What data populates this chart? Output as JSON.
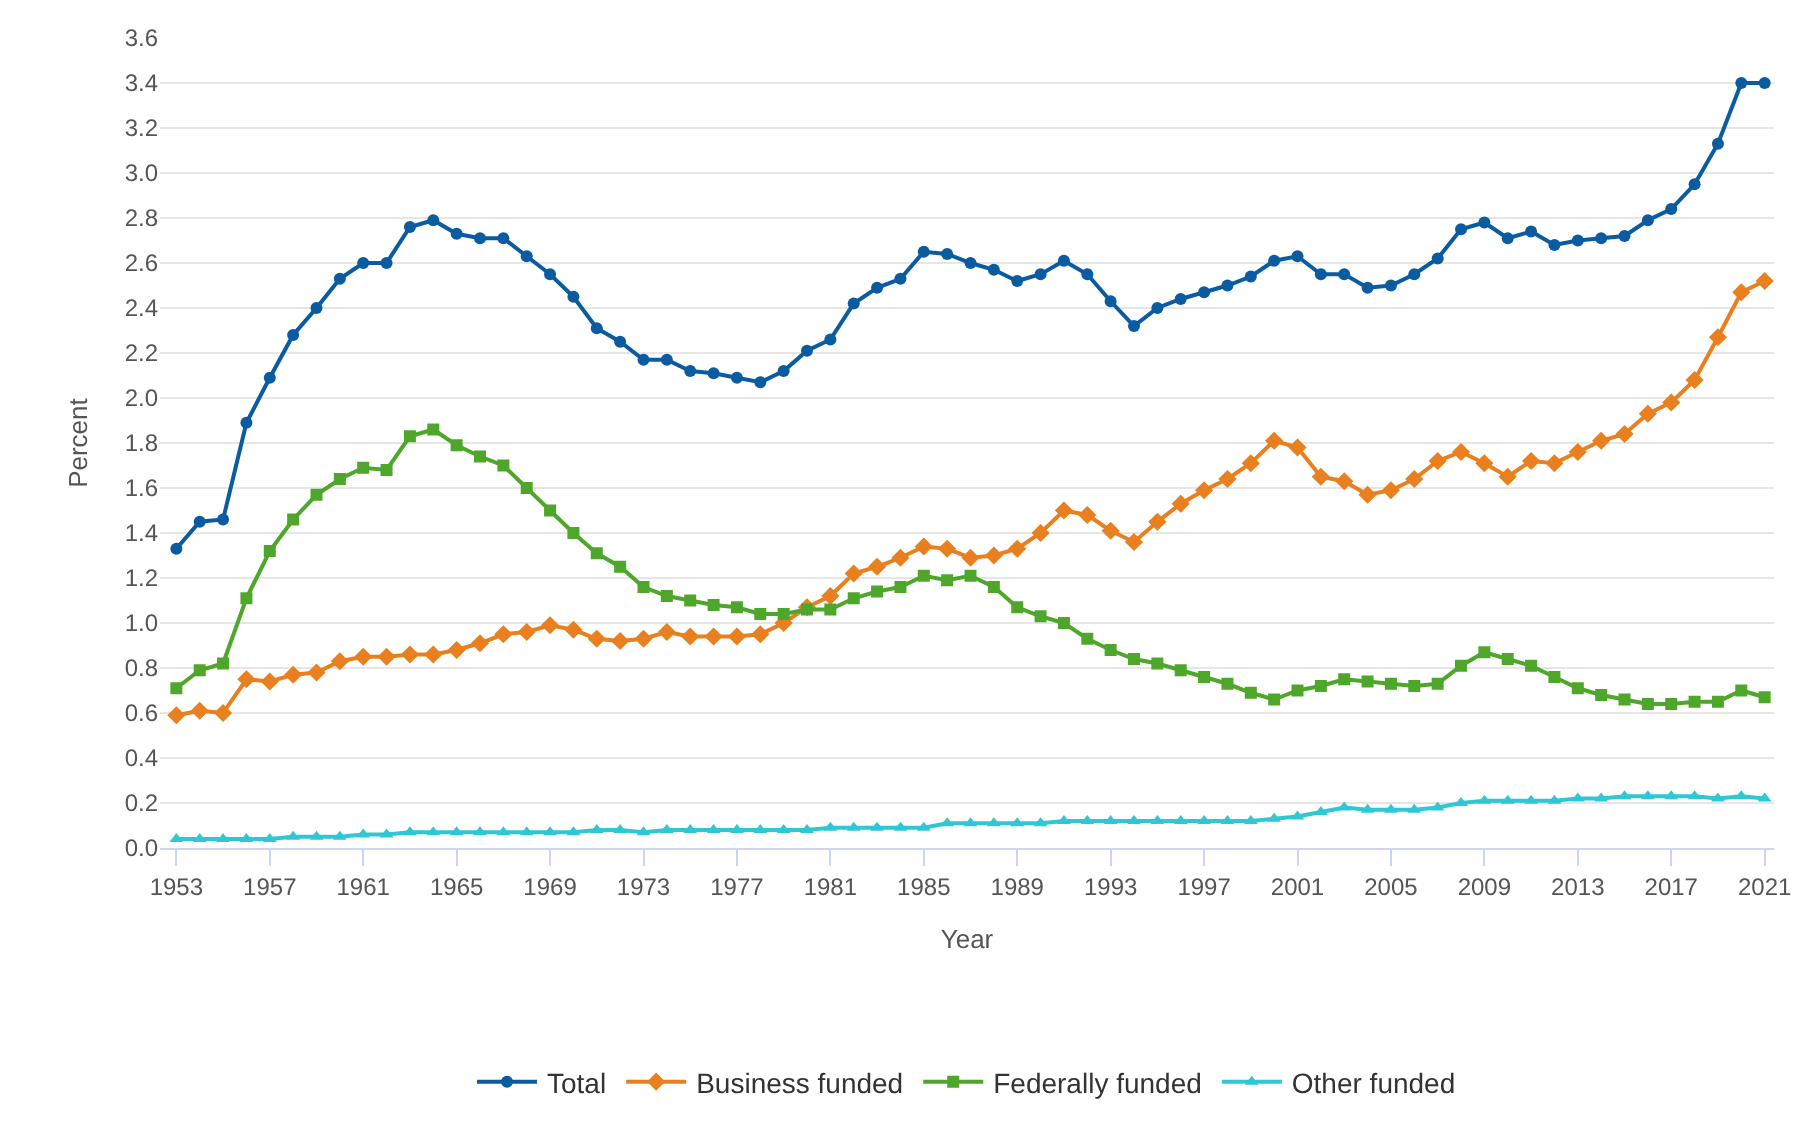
{
  "chart_data": {
    "type": "line",
    "xlabel": "Year",
    "ylabel": "Percent",
    "x": [
      1953,
      1954,
      1955,
      1956,
      1957,
      1958,
      1959,
      1960,
      1961,
      1962,
      1963,
      1964,
      1965,
      1966,
      1967,
      1968,
      1969,
      1970,
      1971,
      1972,
      1973,
      1974,
      1975,
      1976,
      1977,
      1978,
      1979,
      1980,
      1981,
      1982,
      1983,
      1984,
      1985,
      1986,
      1987,
      1988,
      1989,
      1990,
      1991,
      1992,
      1993,
      1994,
      1995,
      1996,
      1997,
      1998,
      1999,
      2000,
      2001,
      2002,
      2003,
      2004,
      2005,
      2006,
      2007,
      2008,
      2009,
      2010,
      2011,
      2012,
      2013,
      2014,
      2015,
      2016,
      2017,
      2018,
      2019,
      2020,
      2021
    ],
    "series": [
      {
        "name": "Total",
        "color": "#0b5ba1",
        "marker": "circle",
        "values": [
          1.33,
          1.45,
          1.46,
          1.89,
          2.09,
          2.28,
          2.4,
          2.53,
          2.6,
          2.6,
          2.76,
          2.79,
          2.73,
          2.71,
          2.71,
          2.63,
          2.55,
          2.45,
          2.31,
          2.25,
          2.17,
          2.17,
          2.12,
          2.11,
          2.09,
          2.07,
          2.12,
          2.21,
          2.26,
          2.42,
          2.49,
          2.53,
          2.65,
          2.64,
          2.6,
          2.57,
          2.52,
          2.55,
          2.61,
          2.55,
          2.43,
          2.32,
          2.4,
          2.44,
          2.47,
          2.5,
          2.54,
          2.61,
          2.63,
          2.55,
          2.55,
          2.49,
          2.5,
          2.55,
          2.62,
          2.75,
          2.78,
          2.71,
          2.74,
          2.68,
          2.7,
          2.71,
          2.72,
          2.79,
          2.84,
          2.95,
          3.13,
          3.4,
          3.4
        ]
      },
      {
        "name": "Business funded",
        "color": "#e8801f",
        "marker": "diamond",
        "values": [
          0.59,
          0.61,
          0.6,
          0.75,
          0.74,
          0.77,
          0.78,
          0.83,
          0.85,
          0.85,
          0.86,
          0.86,
          0.88,
          0.91,
          0.95,
          0.96,
          0.99,
          0.97,
          0.93,
          0.92,
          0.93,
          0.96,
          0.94,
          0.94,
          0.94,
          0.95,
          1.0,
          1.07,
          1.12,
          1.22,
          1.25,
          1.29,
          1.34,
          1.33,
          1.29,
          1.3,
          1.33,
          1.4,
          1.5,
          1.48,
          1.41,
          1.36,
          1.45,
          1.53,
          1.59,
          1.64,
          1.71,
          1.81,
          1.78,
          1.65,
          1.63,
          1.57,
          1.59,
          1.64,
          1.72,
          1.76,
          1.71,
          1.65,
          1.72,
          1.71,
          1.76,
          1.81,
          1.84,
          1.93,
          1.98,
          2.08,
          2.27,
          2.47,
          2.52
        ]
      },
      {
        "name": "Federally funded",
        "color": "#4ea72a",
        "marker": "square",
        "values": [
          0.71,
          0.79,
          0.82,
          1.11,
          1.32,
          1.46,
          1.57,
          1.64,
          1.69,
          1.68,
          1.83,
          1.86,
          1.79,
          1.74,
          1.7,
          1.6,
          1.5,
          1.4,
          1.31,
          1.25,
          1.16,
          1.12,
          1.1,
          1.08,
          1.07,
          1.04,
          1.04,
          1.06,
          1.06,
          1.11,
          1.14,
          1.16,
          1.21,
          1.19,
          1.21,
          1.16,
          1.07,
          1.03,
          1.0,
          0.93,
          0.88,
          0.84,
          0.82,
          0.79,
          0.76,
          0.73,
          0.69,
          0.66,
          0.7,
          0.72,
          0.75,
          0.74,
          0.73,
          0.72,
          0.73,
          0.81,
          0.87,
          0.84,
          0.81,
          0.76,
          0.71,
          0.68,
          0.66,
          0.64,
          0.64,
          0.65,
          0.65,
          0.7,
          0.67
        ]
      },
      {
        "name": "Other funded",
        "color": "#2ec7d3",
        "marker": "triangle",
        "values": [
          0.04,
          0.04,
          0.04,
          0.04,
          0.04,
          0.05,
          0.05,
          0.05,
          0.06,
          0.06,
          0.07,
          0.07,
          0.07,
          0.07,
          0.07,
          0.07,
          0.07,
          0.07,
          0.08,
          0.08,
          0.07,
          0.08,
          0.08,
          0.08,
          0.08,
          0.08,
          0.08,
          0.08,
          0.09,
          0.09,
          0.09,
          0.09,
          0.09,
          0.11,
          0.11,
          0.11,
          0.11,
          0.11,
          0.12,
          0.12,
          0.12,
          0.12,
          0.12,
          0.12,
          0.12,
          0.12,
          0.12,
          0.13,
          0.14,
          0.16,
          0.18,
          0.17,
          0.17,
          0.17,
          0.18,
          0.2,
          0.21,
          0.21,
          0.21,
          0.21,
          0.22,
          0.22,
          0.23,
          0.23,
          0.23,
          0.23,
          0.22,
          0.23,
          0.22
        ]
      }
    ],
    "xlim": [
      1952.3,
      2021.4
    ],
    "xticks": [
      1953,
      1957,
      1961,
      1965,
      1969,
      1973,
      1977,
      1981,
      1985,
      1989,
      1993,
      1997,
      2001,
      2005,
      2009,
      2013,
      2017,
      2021
    ],
    "ylim": [
      0,
      3.6
    ],
    "yticks": [
      {
        "value": 0,
        "label": "0.0"
      },
      {
        "value": 0.2,
        "label": "0.2"
      },
      {
        "value": 0.4,
        "label": "0.4"
      },
      {
        "value": 0.6,
        "label": "0.6"
      },
      {
        "value": 0.8,
        "label": "0.8"
      },
      {
        "value": 1,
        "label": "1.0"
      },
      {
        "value": 1.2,
        "label": "1.2"
      },
      {
        "value": 1.4,
        "label": "1.4"
      },
      {
        "value": 1.6,
        "label": "1.6"
      },
      {
        "value": 1.8,
        "label": "1.8"
      },
      {
        "value": 2,
        "label": "2.0"
      },
      {
        "value": 2.2,
        "label": "2.2"
      },
      {
        "value": 2.4,
        "label": "2.4"
      },
      {
        "value": 2.6,
        "label": "2.6"
      },
      {
        "value": 2.8,
        "label": "2.8"
      },
      {
        "value": 3,
        "label": "3.0"
      },
      {
        "value": 3.2,
        "label": "3.2"
      },
      {
        "value": 3.4,
        "label": "3.4"
      },
      {
        "value": 3.6,
        "label": "3.6"
      }
    ],
    "grid": "y",
    "legend": "bottom",
    "line_style": "solid"
  }
}
